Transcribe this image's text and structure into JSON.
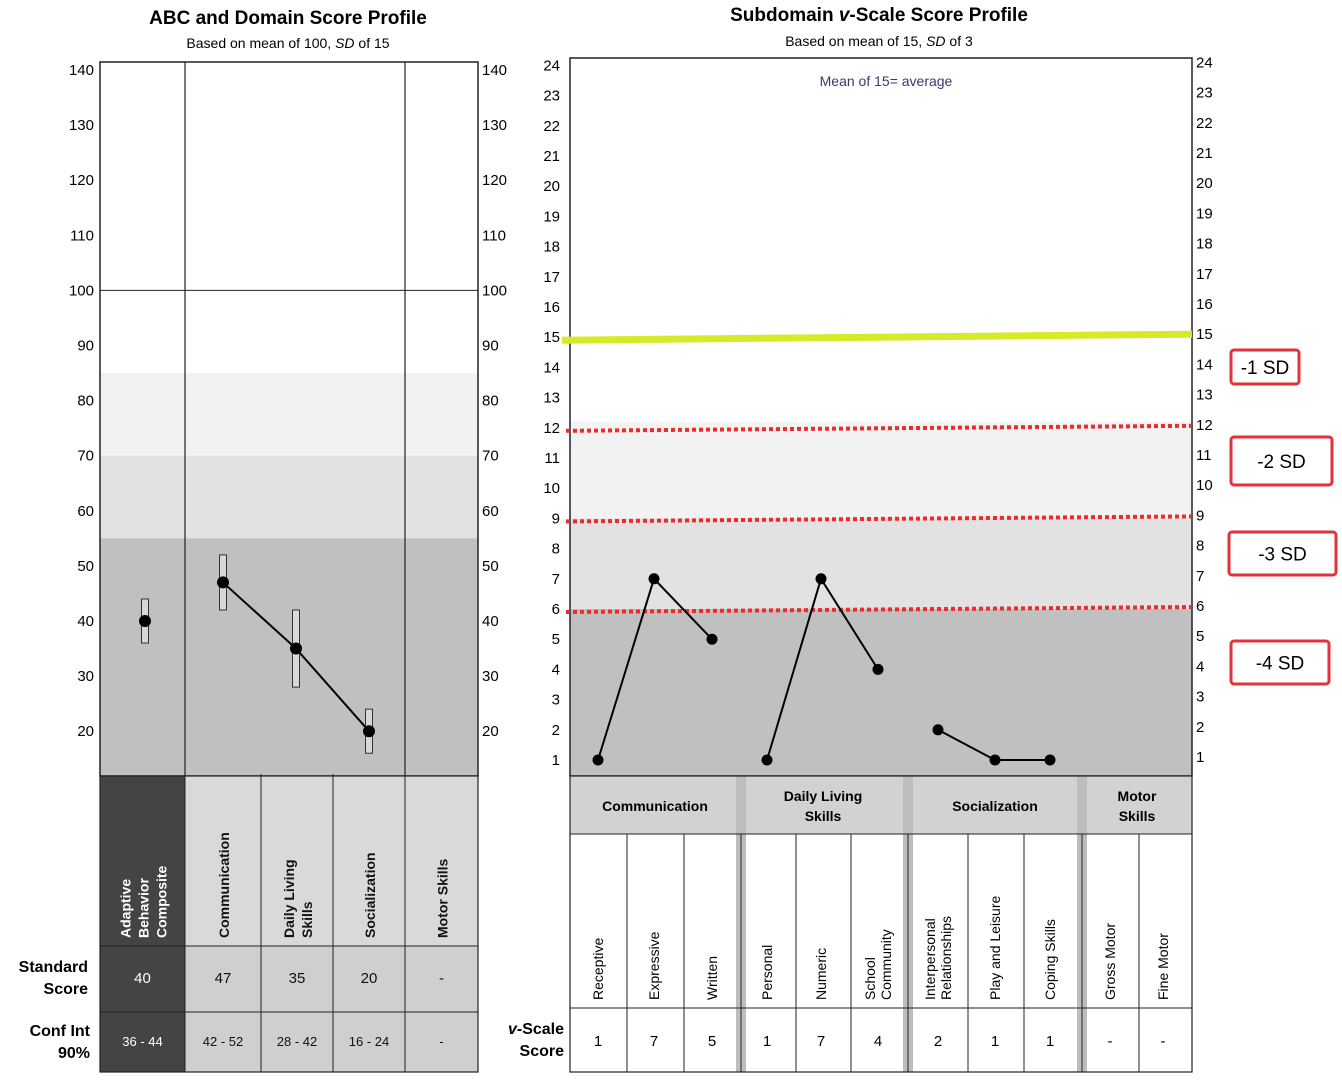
{
  "left": {
    "title": "ABC and Domain Score Profile",
    "subtitle": "Based on mean of 100, SD of 15",
    "subtitle_pre": "Based on mean of 100, ",
    "subtitle_sd": "SD",
    "subtitle_post": " of 15",
    "row_labels": {
      "standard_score": [
        "Standard",
        "Score"
      ],
      "conf_int": [
        "Conf Int",
        "90%"
      ]
    },
    "columns": [
      {
        "label_lines": [
          "Adaptive",
          "Behavior",
          "Composite"
        ],
        "standard_score": "40",
        "conf_int": "36  -  44"
      },
      {
        "label_lines": [
          "Communication"
        ],
        "standard_score": "47",
        "conf_int": "42  -  52"
      },
      {
        "label_lines": [
          "Daily Living",
          "Skills"
        ],
        "standard_score": "35",
        "conf_int": "28  -  42"
      },
      {
        "label_lines": [
          "Socialization"
        ],
        "standard_score": "20",
        "conf_int": "16  -  24"
      },
      {
        "label_lines": [
          "Motor Skills"
        ],
        "standard_score": "-",
        "conf_int": "-"
      }
    ]
  },
  "right": {
    "title_pre": "Subdomain ",
    "title_v": "v",
    "title_post": "-Scale Score Profile",
    "subtitle_pre": "Based on mean of 15, ",
    "subtitle_sd": "SD",
    "subtitle_post": " of 3",
    "annotation": "Mean of 15= average",
    "row_label": [
      "v-Scale",
      "Score"
    ],
    "row_label_v": "v",
    "row_label_rest": "-Scale",
    "domains": [
      {
        "label_lines": [
          "Communication"
        ]
      },
      {
        "label_lines": [
          "Daily Living",
          "Skills"
        ]
      },
      {
        "label_lines": [
          "Socialization"
        ]
      },
      {
        "label_lines": [
          "Motor",
          "Skills"
        ]
      }
    ],
    "subdomains": [
      {
        "label_lines": [
          "Receptive"
        ],
        "score": "1"
      },
      {
        "label_lines": [
          "Expressive"
        ],
        "score": "7"
      },
      {
        "label_lines": [
          "Written"
        ],
        "score": "5"
      },
      {
        "label_lines": [
          "Personal"
        ],
        "score": "1"
      },
      {
        "label_lines": [
          "Numeric"
        ],
        "score": "7"
      },
      {
        "label_lines": [
          "School",
          "Community"
        ],
        "score": "4"
      },
      {
        "label_lines": [
          "Interpersonal",
          "Relationships"
        ],
        "score": "2"
      },
      {
        "label_lines": [
          "Play and Leisure"
        ],
        "score": "1"
      },
      {
        "label_lines": [
          "Coping Skills"
        ],
        "score": "1"
      },
      {
        "label_lines": [
          "Gross Motor"
        ],
        "score": "-"
      },
      {
        "label_lines": [
          "Fine Motor"
        ],
        "score": "-"
      }
    ]
  },
  "sd_labels": [
    "-1  SD",
    "-2 SD",
    "-3 SD",
    "-4 SD"
  ],
  "colors": {
    "mean_line": "#d6ea2a",
    "sd_dotted": "#ee2b2b",
    "sd_box_border": "#e0333a",
    "band_light": "#f2f2f2",
    "band_mid": "#e2e2e2",
    "band_dark": "#c0c0c0",
    "abc_cell_dark": "#444444"
  },
  "chart_data": [
    {
      "type": "line",
      "title": "ABC and Domain Score Profile",
      "subtitle": "Based on mean of 100, SD of 15",
      "categories": [
        "Adaptive Behavior Composite",
        "Communication",
        "Daily Living Skills",
        "Socialization",
        "Motor Skills"
      ],
      "ylim": [
        10,
        140
      ],
      "yticks": [
        20,
        30,
        40,
        50,
        60,
        70,
        80,
        90,
        100,
        110,
        120,
        130,
        140
      ],
      "series": [
        {
          "values": [
            40,
            47,
            35,
            20,
            null
          ],
          "ci_low": [
            36,
            42,
            28,
            16,
            null
          ],
          "ci_high": [
            44,
            52,
            42,
            24,
            null
          ]
        }
      ],
      "connected": [
        false,
        true,
        true,
        true,
        false
      ]
    },
    {
      "type": "line",
      "title": "Subdomain v-Scale Score Profile",
      "subtitle": "Based on mean of 15, SD of 3",
      "categories": [
        "Receptive",
        "Expressive",
        "Written",
        "Personal",
        "Numeric",
        "School Community",
        "Interpersonal Relationships",
        "Play and Leisure",
        "Coping Skills",
        "Gross Motor",
        "Fine Motor"
      ],
      "ylim": [
        0.5,
        24
      ],
      "yticks": [
        1,
        2,
        3,
        4,
        5,
        6,
        7,
        8,
        9,
        10,
        11,
        12,
        13,
        14,
        15,
        16,
        17,
        18,
        19,
        20,
        21,
        22,
        23,
        24
      ],
      "groups": [
        {
          "domain": "Communication",
          "values": [
            1,
            7,
            5
          ]
        },
        {
          "domain": "Daily Living Skills",
          "values": [
            1,
            7,
            4
          ]
        },
        {
          "domain": "Socialization",
          "values": [
            2,
            1,
            1
          ]
        },
        {
          "domain": "Motor Skills",
          "values": [
            null,
            null
          ]
        }
      ],
      "reference_lines": [
        15,
        12,
        9,
        6
      ],
      "annotation": "Mean of 15= average"
    }
  ]
}
